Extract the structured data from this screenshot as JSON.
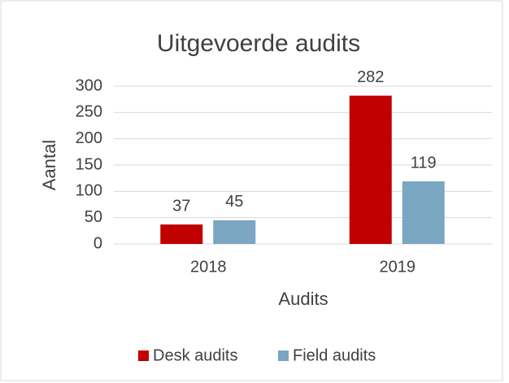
{
  "chart_data": {
    "type": "bar",
    "title": "Uitgevoerde audits",
    "y_label": "Aantal",
    "x_label": "Audits",
    "categories": [
      "2018",
      "2019"
    ],
    "series": [
      {
        "name": "Desk audits",
        "color": "#c00000",
        "values": [
          37,
          282
        ]
      },
      {
        "name": "Field audits",
        "color": "#7aa6c2",
        "values": [
          45,
          119
        ]
      }
    ],
    "ylim": [
      0,
      300
    ],
    "yticks": [
      0,
      50,
      100,
      150,
      200,
      250,
      300
    ],
    "grid": true,
    "legend": "bottom"
  }
}
